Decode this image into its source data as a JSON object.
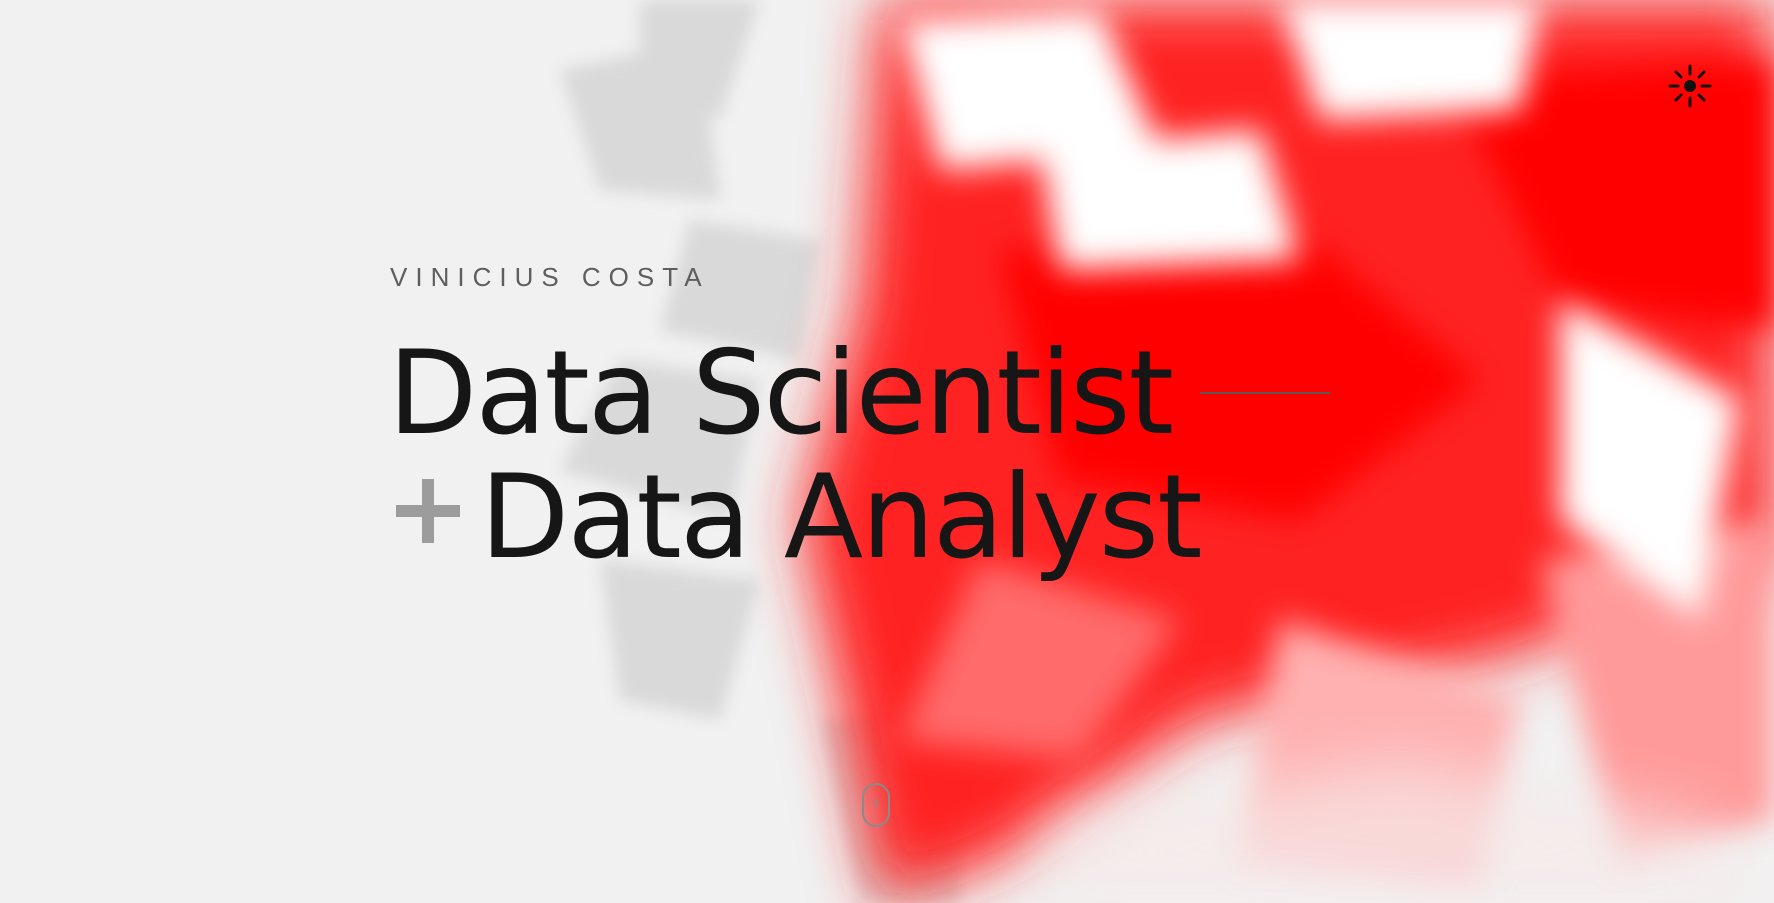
{
  "hero": {
    "eyebrow": "VINICIUS COSTA",
    "headline_line1": "Data Scientist",
    "headline_line2": "Data Analyst"
  },
  "icons": {
    "theme_toggle": "sun-icon",
    "plus": "plus-icon",
    "scroll": "mouse-scroll-icon"
  },
  "colors": {
    "background": "#f1f1f1",
    "accent": "#ff0000",
    "text": "#161616"
  }
}
